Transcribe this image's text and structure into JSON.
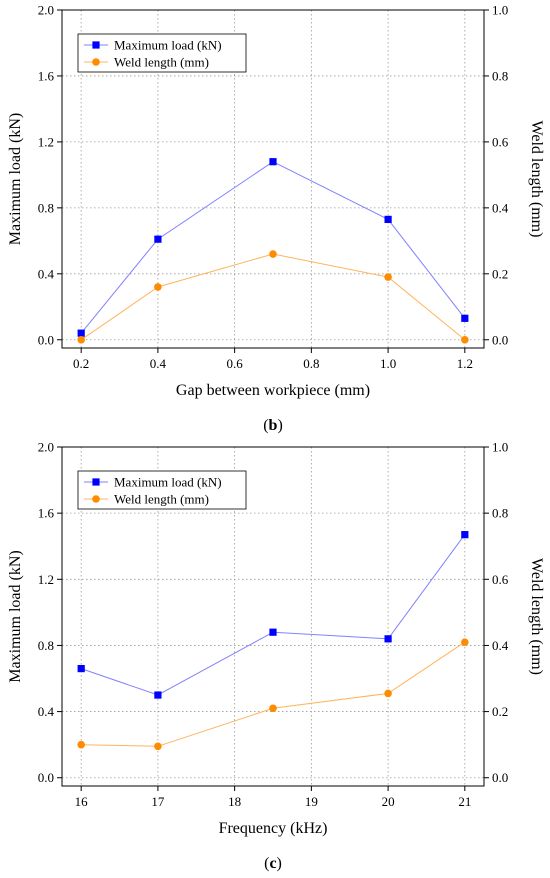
{
  "chart_data": [
    {
      "type": "line",
      "panel_label": "b",
      "xlabel": "Gap between workpiece (mm)",
      "ylabel": "Maximum load (kN)",
      "y2label": "Weld length (mm)",
      "xlim": [
        0.15,
        1.25
      ],
      "ylim": [
        -0.05,
        2.0
      ],
      "y2lim": [
        -0.025,
        1.0
      ],
      "xticks": [
        "0.2",
        "0.4",
        "0.6",
        "0.8",
        "1.0",
        "1.2"
      ],
      "yticks": [
        "0.0",
        "0.4",
        "0.8",
        "1.2",
        "1.6",
        "2.0"
      ],
      "y2ticks": [
        "0.0",
        "0.2",
        "0.4",
        "0.6",
        "0.8",
        "1.0"
      ],
      "grid": true,
      "legend_position": "top-left",
      "x": [
        0.2,
        0.4,
        0.7,
        1.0,
        1.2
      ],
      "series": [
        {
          "name": "Maximum load (kN)",
          "axis": "left",
          "marker": "square",
          "color": "#0000ff",
          "line_color": "#8080ff",
          "values": [
            0.04,
            0.61,
            1.08,
            0.73,
            0.13
          ]
        },
        {
          "name": "Weld length (mm)",
          "axis": "right",
          "marker": "circle",
          "color": "#ff8c00",
          "line_color": "#ffb45a",
          "values": [
            0.0,
            0.16,
            0.26,
            0.19,
            0.0
          ]
        }
      ]
    },
    {
      "type": "line",
      "panel_label": "c",
      "xlabel": "Frequency (kHz)",
      "ylabel": "Maximum load (kN)",
      "y2label": "Weld length (mm)",
      "xlim": [
        15.75,
        21.25
      ],
      "ylim": [
        -0.05,
        2.0
      ],
      "y2lim": [
        -0.025,
        1.0
      ],
      "xticks": [
        "16",
        "17",
        "18",
        "19",
        "20",
        "21"
      ],
      "yticks": [
        "0.0",
        "0.4",
        "0.8",
        "1.2",
        "1.6",
        "2.0"
      ],
      "y2ticks": [
        "0.0",
        "0.2",
        "0.4",
        "0.6",
        "0.8",
        "1.0"
      ],
      "grid": true,
      "legend_position": "top-left",
      "x": [
        16,
        17,
        18.5,
        20,
        21
      ],
      "series": [
        {
          "name": "Maximum load (kN)",
          "axis": "left",
          "marker": "square",
          "color": "#0000ff",
          "line_color": "#8080ff",
          "values": [
            0.66,
            0.5,
            0.88,
            0.84,
            1.47
          ]
        },
        {
          "name": "Weld length (mm)",
          "axis": "right",
          "marker": "circle",
          "color": "#ff8c00",
          "line_color": "#ffb45a",
          "values": [
            0.1,
            0.095,
            0.21,
            0.255,
            0.41
          ]
        }
      ]
    }
  ]
}
